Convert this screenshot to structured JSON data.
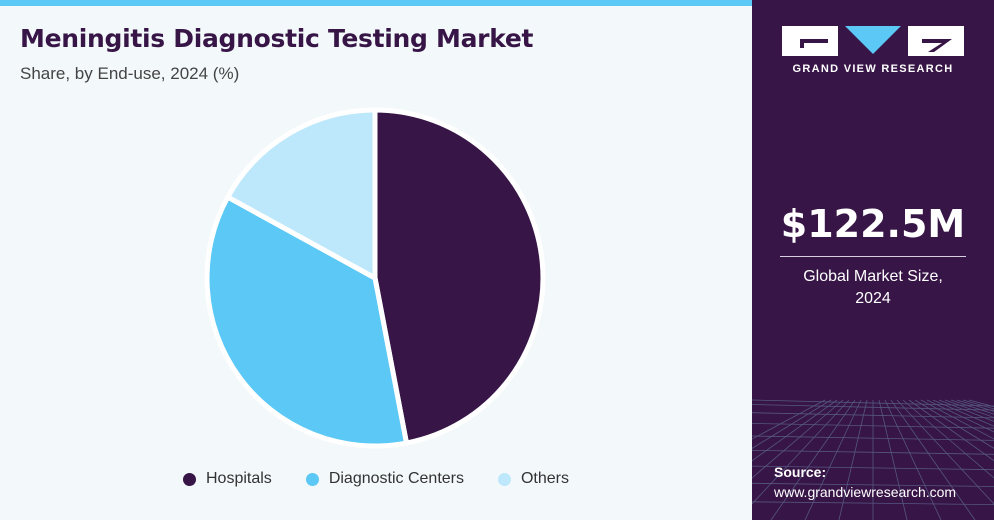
{
  "header": {
    "title": "Meningitis Diagnostic Testing Market",
    "subtitle": "Share, by End-use, 2024 (%)"
  },
  "chart_data": {
    "type": "pie",
    "title": "Meningitis Diagnostic Testing Market",
    "subtitle": "Share, by End-use, 2024 (%)",
    "categories": [
      "Hospitals",
      "Diagnostic Centers",
      "Others"
    ],
    "values": [
      47,
      36,
      17
    ],
    "colors": [
      "#371546",
      "#5bc8f5",
      "#bde8fb"
    ],
    "legend_position": "bottom"
  },
  "sidebar": {
    "logo_text": "GRAND VIEW RESEARCH",
    "market_value": "$122.5M",
    "market_label_line1": "Global Market Size,",
    "market_label_line2": "2024",
    "source_label": "Source:",
    "source_url": "www.grandviewresearch.com"
  },
  "colors": {
    "brand_purple": "#371546",
    "accent_blue": "#5bc8f5",
    "light_blue": "#bde8fb"
  }
}
